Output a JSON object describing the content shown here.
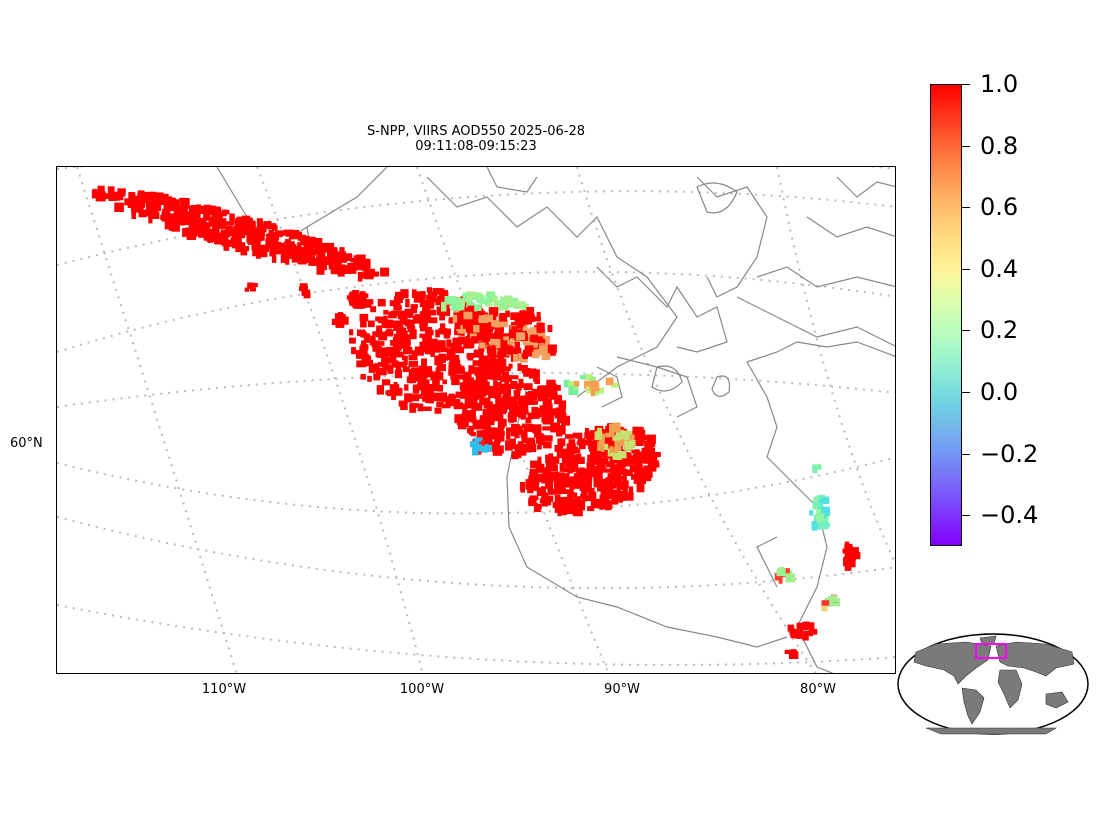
{
  "title": {
    "line1": "S-NPP, VIIRS AOD550 2025-06-28",
    "line2": "09:11:08-09:15:23"
  },
  "axes": {
    "lon_labels": [
      "110°W",
      "100°W",
      "90°W",
      "80°W"
    ],
    "lat_labels": [
      "60°N"
    ]
  },
  "colorbar": {
    "colormap": "rainbow",
    "vmin": -0.5,
    "vmax": 1.0,
    "ticks": [
      {
        "value": 1.0,
        "label": "1.0"
      },
      {
        "value": 0.8,
        "label": "0.8"
      },
      {
        "value": 0.6,
        "label": "0.6"
      },
      {
        "value": 0.4,
        "label": "0.4"
      },
      {
        "value": 0.2,
        "label": "0.2"
      },
      {
        "value": 0.0,
        "label": "0.0"
      },
      {
        "value": -0.2,
        "label": "−0.2"
      },
      {
        "value": -0.4,
        "label": "−0.4"
      }
    ]
  },
  "colors": {
    "high_aod": "#ff0000",
    "coastline": "#888888",
    "gridline": "#bbbbbb",
    "inset_land": "#7a7a7a",
    "inset_box": "#ff00ff"
  },
  "map": {
    "projection": "Lambert conformal (rotated)",
    "extent_description": "Western/Central Canada to Hudson Bay and Labrador",
    "inset_locator": "world map with magenta extent box"
  }
}
